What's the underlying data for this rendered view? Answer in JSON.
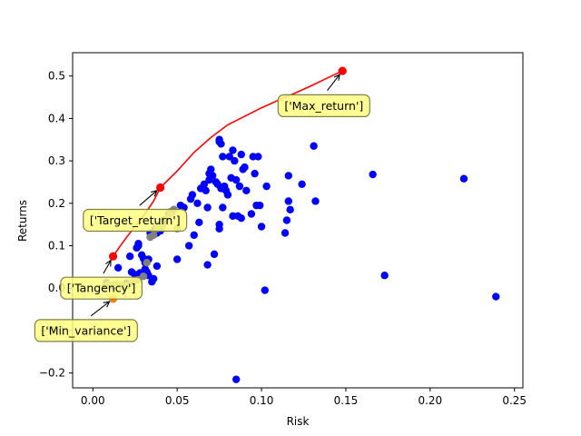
{
  "chart_data": {
    "type": "scatter",
    "title": "",
    "xlabel": "Risk",
    "ylabel": "Returns",
    "xlim": [
      -0.012,
      0.255
    ],
    "ylim": [
      -0.235,
      0.555
    ],
    "grid": false,
    "xticks": [
      0.0,
      0.05,
      0.1,
      0.15,
      0.2,
      0.25
    ],
    "xtick_labels": [
      "0.00",
      "0.05",
      "0.10",
      "0.15",
      "0.20",
      "0.25"
    ],
    "yticks": [
      -0.2,
      -0.1,
      0.0,
      0.1,
      0.2,
      0.3,
      0.4,
      0.5
    ],
    "ytick_labels": [
      "−0.2",
      "−0.1",
      "0.0",
      "0.1",
      "0.2",
      "0.3",
      "0.4",
      "0.5"
    ],
    "colors": {
      "assets": "#0000ff",
      "portfolios": "#808080",
      "frontier": "#ff0000",
      "highlight": "#ff0000",
      "min_variance": "#ff7f0e",
      "annotation_fill": "#ffff80",
      "annotation_edge": "#7f7f46"
    },
    "series": [
      {
        "name": "",
        "marker": "circle",
        "color_key": "assets",
        "points": [
          [
            0.008,
            0.013
          ],
          [
            0.012,
            0.005
          ],
          [
            0.015,
            0.048
          ],
          [
            0.018,
            0.005
          ],
          [
            0.02,
            0.012
          ],
          [
            0.022,
            0.075
          ],
          [
            0.023,
            0.038
          ],
          [
            0.025,
            0.032
          ],
          [
            0.026,
            0.095
          ],
          [
            0.027,
            0.1
          ],
          [
            0.027,
            0.105
          ],
          [
            0.028,
            0.036
          ],
          [
            0.029,
            0.078
          ],
          [
            0.03,
            0.07
          ],
          [
            0.031,
            0.06
          ],
          [
            0.031,
            0.045
          ],
          [
            0.032,
            0.038
          ],
          [
            0.033,
            0.068
          ],
          [
            0.033,
            0.03
          ],
          [
            0.034,
            0.13
          ],
          [
            0.035,
            0.015
          ],
          [
            0.036,
            0.022
          ],
          [
            0.037,
            0.14
          ],
          [
            0.038,
            0.13
          ],
          [
            0.038,
            0.052
          ],
          [
            0.04,
            0.135
          ],
          [
            0.041,
            0.15
          ],
          [
            0.042,
            0.16
          ],
          [
            0.045,
            0.175
          ],
          [
            0.047,
            0.18
          ],
          [
            0.048,
            0.185
          ],
          [
            0.05,
            0.068
          ],
          [
            0.052,
            0.195
          ],
          [
            0.054,
            0.19
          ],
          [
            0.057,
            0.1
          ],
          [
            0.058,
            0.21
          ],
          [
            0.059,
            0.22
          ],
          [
            0.06,
            0.125
          ],
          [
            0.062,
            0.2
          ],
          [
            0.063,
            0.155
          ],
          [
            0.064,
            0.235
          ],
          [
            0.066,
            0.245
          ],
          [
            0.067,
            0.23
          ],
          [
            0.068,
            0.055
          ],
          [
            0.068,
            0.19
          ],
          [
            0.069,
            0.255
          ],
          [
            0.069,
            0.27
          ],
          [
            0.07,
            0.28
          ],
          [
            0.071,
            0.265
          ],
          [
            0.072,
            0.08
          ],
          [
            0.073,
            0.25
          ],
          [
            0.074,
            0.245
          ],
          [
            0.075,
            0.14
          ],
          [
            0.075,
            0.15
          ],
          [
            0.075,
            0.345
          ],
          [
            0.075,
            0.35
          ],
          [
            0.076,
            0.34
          ],
          [
            0.076,
            0.235
          ],
          [
            0.077,
            0.19
          ],
          [
            0.077,
            0.31
          ],
          [
            0.078,
            0.24
          ],
          [
            0.079,
            0.23
          ],
          [
            0.08,
            0.22
          ],
          [
            0.081,
            0.31
          ],
          [
            0.082,
            0.26
          ],
          [
            0.083,
            0.325
          ],
          [
            0.083,
            0.17
          ],
          [
            0.084,
            0.3
          ],
          [
            0.085,
            -0.215
          ],
          [
            0.085,
            0.255
          ],
          [
            0.086,
            0.17
          ],
          [
            0.087,
            0.24
          ],
          [
            0.088,
            0.165
          ],
          [
            0.088,
            0.315
          ],
          [
            0.089,
            0.28
          ],
          [
            0.09,
            0.285
          ],
          [
            0.091,
            0.23
          ],
          [
            0.094,
            0.175
          ],
          [
            0.095,
            0.31
          ],
          [
            0.096,
            0.27
          ],
          [
            0.097,
            0.195
          ],
          [
            0.098,
            0.31
          ],
          [
            0.099,
            0.195
          ],
          [
            0.1,
            0.145
          ],
          [
            0.102,
            -0.005
          ],
          [
            0.103,
            0.24
          ],
          [
            0.114,
            0.13
          ],
          [
            0.115,
            0.16
          ],
          [
            0.116,
            0.265
          ],
          [
            0.116,
            0.205
          ],
          [
            0.117,
            0.185
          ],
          [
            0.124,
            0.245
          ],
          [
            0.131,
            0.335
          ],
          [
            0.132,
            0.205
          ],
          [
            0.166,
            0.268
          ],
          [
            0.173,
            0.03
          ],
          [
            0.22,
            0.258
          ],
          [
            0.239,
            -0.02
          ]
        ]
      },
      {
        "name": "",
        "marker": "circle",
        "color_key": "portfolios",
        "points": [
          [
            0.007,
            0.003
          ],
          [
            0.009,
            0.007
          ],
          [
            0.012,
            0.008
          ],
          [
            0.014,
            0.01
          ],
          [
            0.017,
            0.006
          ],
          [
            0.02,
            0.005
          ],
          [
            0.023,
            0.012
          ],
          [
            0.025,
            0.018
          ],
          [
            0.027,
            0.02
          ],
          [
            0.03,
            0.028
          ],
          [
            0.032,
            0.06
          ],
          [
            0.034,
            0.12
          ],
          [
            0.036,
            0.125
          ],
          [
            0.038,
            0.14
          ],
          [
            0.039,
            0.148
          ],
          [
            0.04,
            0.15
          ],
          [
            0.041,
            0.145
          ],
          [
            0.044,
            0.165
          ],
          [
            0.046,
            0.18
          ],
          [
            0.048,
            0.185
          ],
          [
            0.05,
            0.14
          ]
        ]
      }
    ],
    "frontier": {
      "name": "",
      "color_key": "frontier",
      "points": [
        [
          0.012,
          0.075
        ],
        [
          0.016,
          0.098
        ],
        [
          0.02,
          0.12
        ],
        [
          0.025,
          0.145
        ],
        [
          0.03,
          0.17
        ],
        [
          0.036,
          0.205
        ],
        [
          0.04,
          0.237
        ],
        [
          0.05,
          0.276
        ],
        [
          0.06,
          0.32
        ],
        [
          0.07,
          0.355
        ],
        [
          0.08,
          0.385
        ],
        [
          0.09,
          0.405
        ],
        [
          0.1,
          0.425
        ],
        [
          0.11,
          0.443
        ],
        [
          0.12,
          0.46
        ],
        [
          0.13,
          0.478
        ],
        [
          0.14,
          0.497
        ],
        [
          0.148,
          0.512
        ]
      ]
    },
    "annotations": [
      {
        "text": "['Max_return']",
        "x": 0.148,
        "y": 0.512,
        "text_x": 0.137,
        "text_y": 0.43,
        "point_color_key": "highlight",
        "align": "middle"
      },
      {
        "text": "['Target_return']",
        "x": 0.04,
        "y": 0.237,
        "text_x": 0.025,
        "text_y": 0.16,
        "point_color_key": "highlight",
        "align": "middle"
      },
      {
        "text": "['Tangency']",
        "x": 0.012,
        "y": 0.075,
        "text_x": 0.005,
        "text_y": 0.0,
        "point_color_key": "highlight",
        "align": "middle"
      },
      {
        "text": "['Min_variance']",
        "x": 0.012,
        "y": -0.025,
        "text_x": -0.004,
        "text_y": -0.1,
        "point_color_key": "min_variance",
        "align": "middle"
      }
    ]
  }
}
